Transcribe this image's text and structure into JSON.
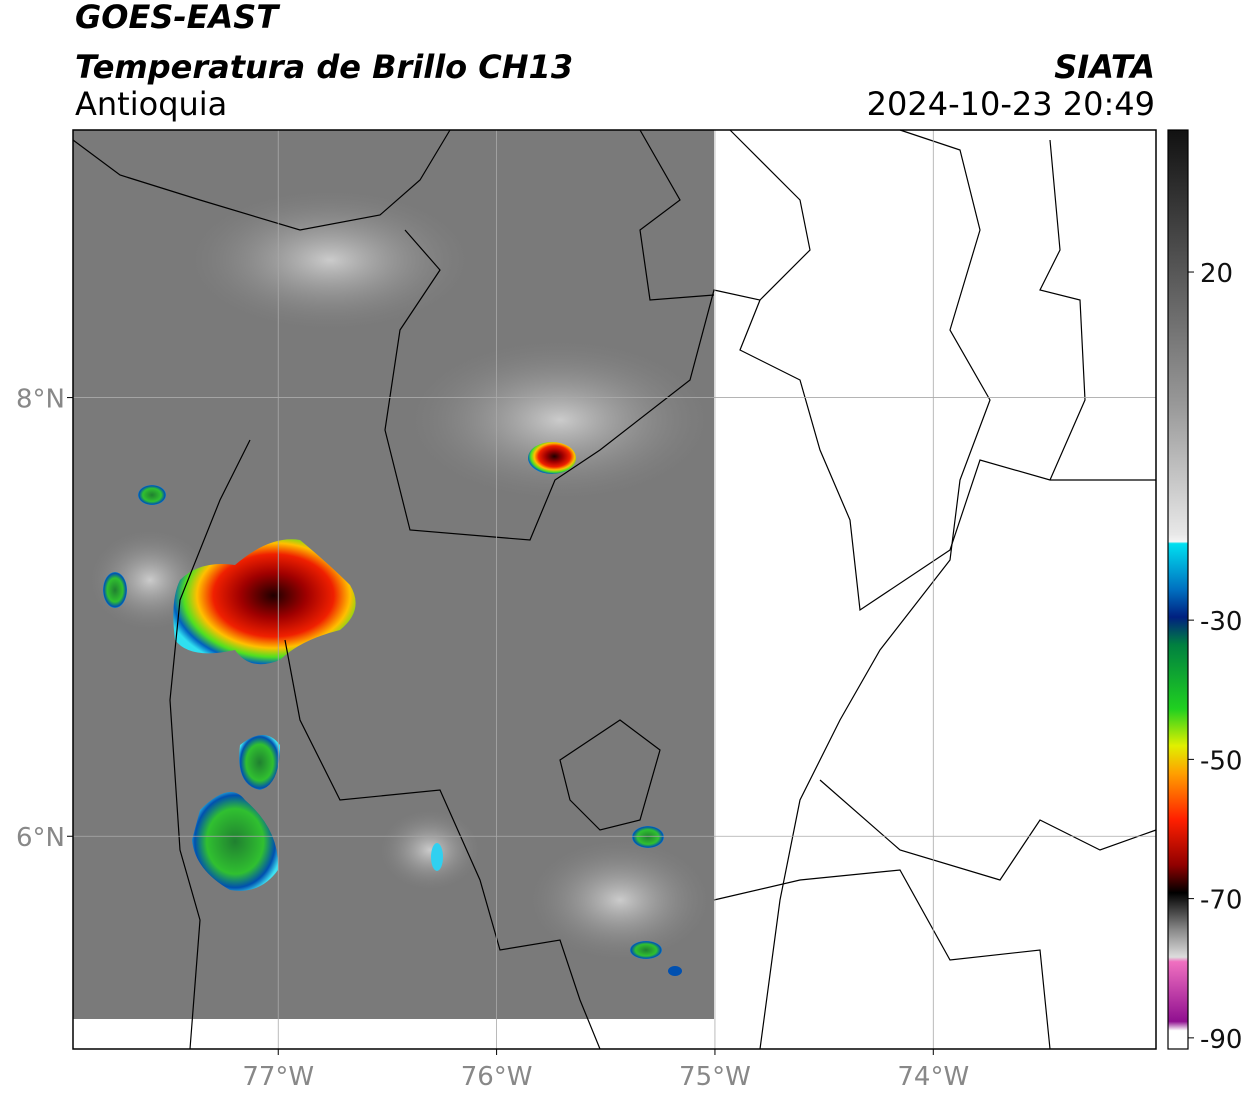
{
  "header": {
    "title": "GOES-EAST",
    "subtitle": "Temperatura de Brillo CH13",
    "region": "Antioquia",
    "source": "SIATA",
    "datetime": "2024-10-23 20:49"
  },
  "map": {
    "xlim": [
      -77.94,
      -72.98
    ],
    "ylim": [
      5.03,
      9.22
    ],
    "xticks": [
      {
        "value": -77,
        "label": "77°W"
      },
      {
        "value": -76,
        "label": "76°W"
      },
      {
        "value": -75,
        "label": "75°W"
      },
      {
        "value": -74,
        "label": "74°W"
      }
    ],
    "yticks": [
      {
        "value": 6,
        "label": "6°N"
      },
      {
        "value": 8,
        "label": "8°N"
      }
    ]
  },
  "colorbar": {
    "lim": [
      -91.6,
      40.4
    ],
    "ticks": [
      20,
      -30,
      -50,
      -70,
      -90
    ]
  }
}
